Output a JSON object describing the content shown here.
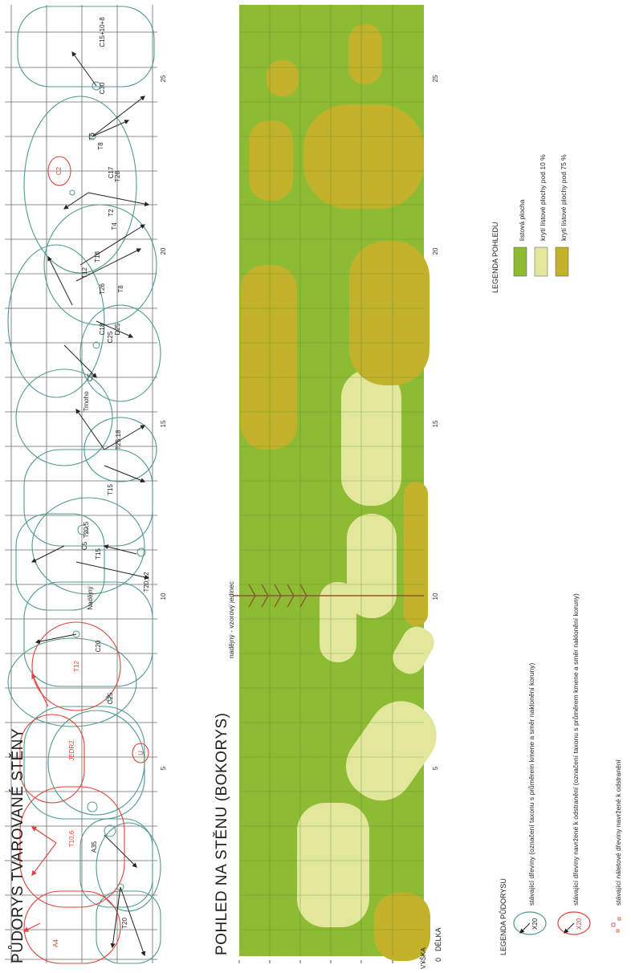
{
  "plan": {
    "title": "PŮDORYS TVAROVANÉ STĚNY",
    "scale_numbers": [
      "5",
      "10",
      "15",
      "20",
      "25"
    ],
    "existing_labels": [
      "C15+10+8",
      "C30",
      "T5",
      "T8",
      "C17",
      "T28",
      "T2",
      "T4",
      "T18",
      "T12",
      "T26",
      "T8",
      "C18",
      "C25",
      "D25",
      "C5",
      "Trnoho",
      "T25:18",
      "T15",
      "T20,5",
      "T15",
      "C5",
      "Nadějný",
      "T20;12",
      "C20",
      "C25",
      "A35",
      "T20"
    ],
    "removal_labels": [
      "C2",
      "T12",
      "JEDR2",
      "U",
      "T10,6",
      "A4"
    ]
  },
  "view": {
    "title": "POHLED NA STĚNU (BOKORYS)",
    "tree_label": "nadějný - vzorový jedinec",
    "length_label": "DÉLKA",
    "origin_label": "0",
    "height_label": "VÝŠKA",
    "scale_numbers": [
      "5",
      "10",
      "15",
      "20",
      "25"
    ]
  },
  "legend_plan": {
    "title": "LEGENDA PŮDORYSU",
    "items": [
      "stávající dřeviny (označení taxonu s průměrem kmene a směr naklonění koruny)",
      "stávající dřeviny navržené k odstranění (označení taxonu s průměrem kmene a směr naklonění koruny)",
      "stávající náletové dřeviny navržené k odstranění"
    ],
    "symbol_label": "X20"
  },
  "legend_view": {
    "title": "LEGENDA POHLEDU",
    "items": [
      {
        "label": "listová plocha",
        "color": "#8dbb34"
      },
      {
        "label": "krytí listové plochy pod 10 %",
        "color": "#e2e79c"
      },
      {
        "label": "krytí listové plochy pod 75 %",
        "color": "#c2b12a"
      }
    ]
  },
  "colors": {
    "existing": "#4f9a8c",
    "removal": "#e0433a",
    "grid": "#6a6a6a"
  }
}
